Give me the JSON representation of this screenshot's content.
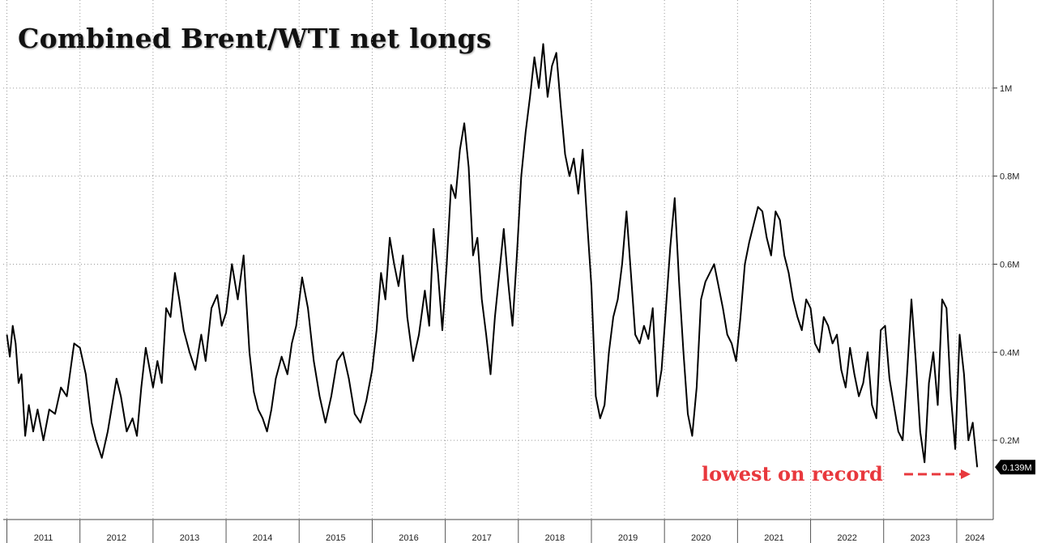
{
  "title": "Combined Brent/WTI net longs",
  "annotation": "lowest on record",
  "last_value_label": "0.139M",
  "colors": {
    "line": "#000000",
    "annotation": "#e8383d",
    "grid": "#9a9a9a",
    "label_bg": "#000000"
  },
  "chart_data": {
    "type": "line",
    "title": "Combined Brent/WTI net longs",
    "xlabel": "",
    "ylabel": "",
    "ylim": [
      0.02,
      1.2
    ],
    "xlim": [
      2010.95,
      2024.5
    ],
    "yticks": [
      {
        "value": 0.2,
        "label": "0.2M"
      },
      {
        "value": 0.4,
        "label": "0.4M"
      },
      {
        "value": 0.6,
        "label": "0.6M"
      },
      {
        "value": 0.8,
        "label": "0.8M"
      },
      {
        "value": 1.0,
        "label": "1M"
      }
    ],
    "xticks": [
      "2011",
      "2012",
      "2013",
      "2014",
      "2015",
      "2016",
      "2017",
      "2018",
      "2019",
      "2020",
      "2021",
      "2022",
      "2023",
      "2024"
    ],
    "grid": true,
    "last_value": 0.139,
    "series": [
      {
        "x": [
          2011.0,
          2011.04,
          2011.08,
          2011.12,
          2011.16,
          2011.2,
          2011.25,
          2011.3,
          2011.36,
          2011.42,
          2011.5,
          2011.58,
          2011.66,
          2011.74,
          2011.82,
          2011.92,
          2012.0,
          2012.08,
          2012.16,
          2012.22,
          2012.3,
          2012.38,
          2012.44,
          2012.5,
          2012.56,
          2012.64,
          2012.72,
          2012.78,
          2012.84,
          2012.9,
          2013.0,
          2013.06,
          2013.12,
          2013.18,
          2013.24,
          2013.3,
          2013.36,
          2013.42,
          2013.5,
          2013.58,
          2013.66,
          2013.72,
          2013.8,
          2013.88,
          2013.94,
          2014.0,
          2014.08,
          2014.16,
          2014.24,
          2014.32,
          2014.38,
          2014.44,
          2014.5,
          2014.56,
          2014.62,
          2014.68,
          2014.76,
          2014.84,
          2014.9,
          2014.96,
          2015.04,
          2015.12,
          2015.2,
          2015.28,
          2015.36,
          2015.44,
          2015.52,
          2015.6,
          2015.68,
          2015.76,
          2015.84,
          2015.92,
          2016.0,
          2016.06,
          2016.12,
          2016.18,
          2016.24,
          2016.3,
          2016.36,
          2016.42,
          2016.48,
          2016.56,
          2016.64,
          2016.72,
          2016.78,
          2016.84,
          2016.9,
          2016.96,
          2017.02,
          2017.08,
          2017.14,
          2017.2,
          2017.26,
          2017.32,
          2017.38,
          2017.44,
          2017.5,
          2017.56,
          2017.62,
          2017.68,
          2017.74,
          2017.8,
          2017.86,
          2017.92,
          2017.98,
          2018.04,
          2018.1,
          2018.16,
          2018.22,
          2018.28,
          2018.34,
          2018.4,
          2018.46,
          2018.52,
          2018.58,
          2018.64,
          2018.7,
          2018.76,
          2018.82,
          2018.88,
          2018.94,
          2019.0,
          2019.06,
          2019.12,
          2019.18,
          2019.24,
          2019.3,
          2019.36,
          2019.42,
          2019.48,
          2019.54,
          2019.6,
          2019.66,
          2019.72,
          2019.78,
          2019.84,
          2019.9,
          2019.96,
          2020.02,
          2020.08,
          2020.14,
          2020.2,
          2020.26,
          2020.32,
          2020.38,
          2020.44,
          2020.5,
          2020.56,
          2020.62,
          2020.68,
          2020.74,
          2020.8,
          2020.86,
          2020.92,
          2020.98,
          2021.04,
          2021.1,
          2021.16,
          2021.22,
          2021.28,
          2021.34,
          2021.4,
          2021.46,
          2021.52,
          2021.58,
          2021.64,
          2021.7,
          2021.76,
          2021.82,
          2021.88,
          2021.94,
          2022.0,
          2022.06,
          2022.12,
          2022.18,
          2022.24,
          2022.3,
          2022.36,
          2022.42,
          2022.48,
          2022.54,
          2022.6,
          2022.66,
          2022.72,
          2022.78,
          2022.84,
          2022.9,
          2022.96,
          2023.02,
          2023.08,
          2023.14,
          2023.2,
          2023.26,
          2023.32,
          2023.38,
          2023.44,
          2023.5,
          2023.56,
          2023.62,
          2023.68,
          2023.74,
          2023.8,
          2023.86,
          2023.92,
          2023.98,
          2024.04,
          2024.1,
          2024.16,
          2024.22,
          2024.28
        ],
        "y": [
          0.44,
          0.39,
          0.46,
          0.42,
          0.33,
          0.35,
          0.21,
          0.28,
          0.22,
          0.27,
          0.2,
          0.27,
          0.26,
          0.32,
          0.3,
          0.42,
          0.41,
          0.35,
          0.24,
          0.2,
          0.16,
          0.22,
          0.28,
          0.34,
          0.3,
          0.22,
          0.25,
          0.21,
          0.32,
          0.41,
          0.32,
          0.38,
          0.33,
          0.5,
          0.48,
          0.58,
          0.52,
          0.45,
          0.4,
          0.36,
          0.44,
          0.38,
          0.5,
          0.53,
          0.46,
          0.49,
          0.6,
          0.52,
          0.62,
          0.4,
          0.31,
          0.27,
          0.25,
          0.22,
          0.27,
          0.34,
          0.39,
          0.35,
          0.42,
          0.46,
          0.57,
          0.5,
          0.38,
          0.3,
          0.24,
          0.3,
          0.38,
          0.4,
          0.34,
          0.26,
          0.24,
          0.29,
          0.36,
          0.45,
          0.58,
          0.52,
          0.66,
          0.6,
          0.55,
          0.62,
          0.48,
          0.38,
          0.44,
          0.54,
          0.46,
          0.68,
          0.58,
          0.45,
          0.6,
          0.78,
          0.75,
          0.86,
          0.92,
          0.82,
          0.62,
          0.66,
          0.52,
          0.44,
          0.35,
          0.48,
          0.58,
          0.68,
          0.56,
          0.46,
          0.62,
          0.8,
          0.9,
          0.98,
          1.07,
          1.0,
          1.1,
          0.98,
          1.05,
          1.08,
          0.96,
          0.85,
          0.8,
          0.84,
          0.76,
          0.86,
          0.7,
          0.55,
          0.3,
          0.25,
          0.28,
          0.4,
          0.48,
          0.52,
          0.6,
          0.72,
          0.58,
          0.44,
          0.42,
          0.46,
          0.43,
          0.5,
          0.3,
          0.36,
          0.5,
          0.64,
          0.75,
          0.56,
          0.4,
          0.26,
          0.21,
          0.32,
          0.52,
          0.56,
          0.58,
          0.6,
          0.55,
          0.5,
          0.44,
          0.42,
          0.38,
          0.48,
          0.6,
          0.65,
          0.69,
          0.73,
          0.72,
          0.66,
          0.62,
          0.72,
          0.7,
          0.62,
          0.58,
          0.52,
          0.48,
          0.45,
          0.52,
          0.5,
          0.42,
          0.4,
          0.48,
          0.46,
          0.42,
          0.44,
          0.36,
          0.32,
          0.41,
          0.35,
          0.3,
          0.33,
          0.4,
          0.28,
          0.25,
          0.45,
          0.46,
          0.34,
          0.28,
          0.22,
          0.2,
          0.35,
          0.52,
          0.38,
          0.22,
          0.15,
          0.33,
          0.4,
          0.28,
          0.52,
          0.5,
          0.3,
          0.18,
          0.44,
          0.35,
          0.2,
          0.24,
          0.139
        ]
      }
    ]
  }
}
